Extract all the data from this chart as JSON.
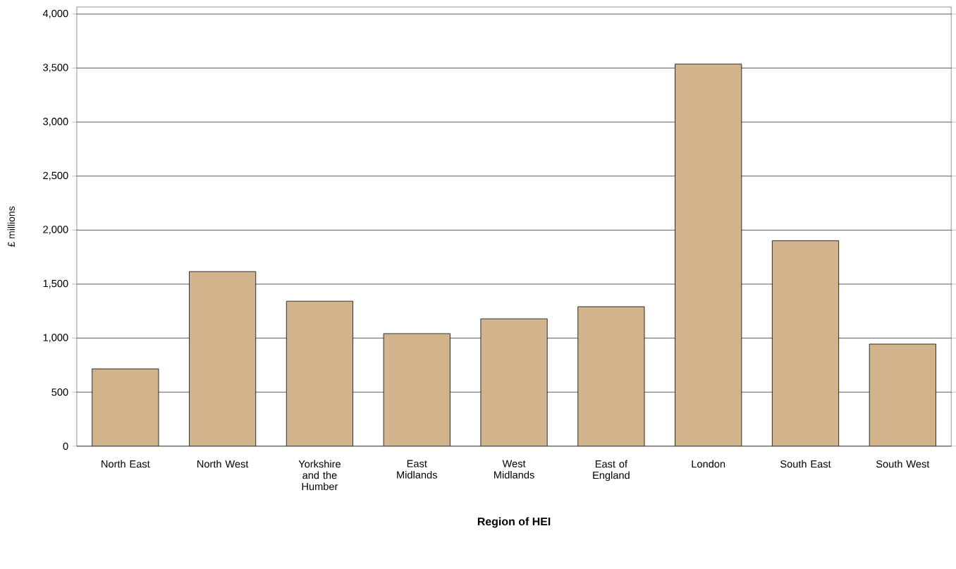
{
  "chart_data": {
    "type": "bar",
    "xlabel": "Region of HEI",
    "ylabel": "£ millions",
    "categories": [
      "North East",
      "North West",
      "Yorkshire and the Humber",
      "East Midlands",
      "West Midlands",
      "East of England",
      "London",
      "South East",
      "South West"
    ],
    "values": [
      716,
      1616,
      1342,
      1042,
      1179,
      1291,
      3537,
      1902,
      945
    ],
    "color": "#d2b48c",
    "ylim": [
      0,
      4065
    ],
    "yticks": [
      {
        "value": 0,
        "label": "0"
      },
      {
        "value": 500,
        "label": "500"
      },
      {
        "value": 1000,
        "label": "1,000"
      },
      {
        "value": 1500,
        "label": "1,500"
      },
      {
        "value": 2000,
        "label": "2,000"
      },
      {
        "value": 2500,
        "label": "2,500"
      },
      {
        "value": 3000,
        "label": "3,000"
      },
      {
        "value": 3500,
        "label": "3,500"
      },
      {
        "value": 4000,
        "label": "4,000"
      }
    ],
    "grid": "y"
  }
}
